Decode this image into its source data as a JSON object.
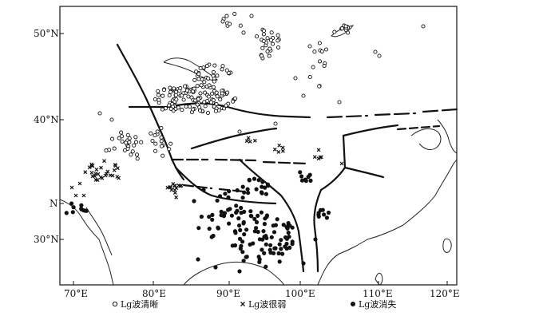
{
  "map": {
    "lon_labels": [
      "70°E",
      "80°E",
      "90°E",
      "100°E",
      "110°E",
      "120°E"
    ],
    "lat_labels": [
      "50°N",
      "40°N",
      "N",
      "30°N"
    ],
    "legend": [
      {
        "symbol": "open-circle",
        "label": "Lg波清晰"
      },
      {
        "symbol": "cross",
        "label": "Lg波很弱"
      },
      {
        "symbol": "filled-circle",
        "label": "Lg波消失"
      }
    ],
    "marker_groups": {
      "clear": {
        "symbol": "open-circle",
        "meaning": "Lg波清晰"
      },
      "weak": {
        "symbol": "cross",
        "meaning": "Lg波很弱"
      },
      "absent": {
        "symbol": "filled-circle",
        "meaning": "Lg波消失"
      }
    }
  }
}
